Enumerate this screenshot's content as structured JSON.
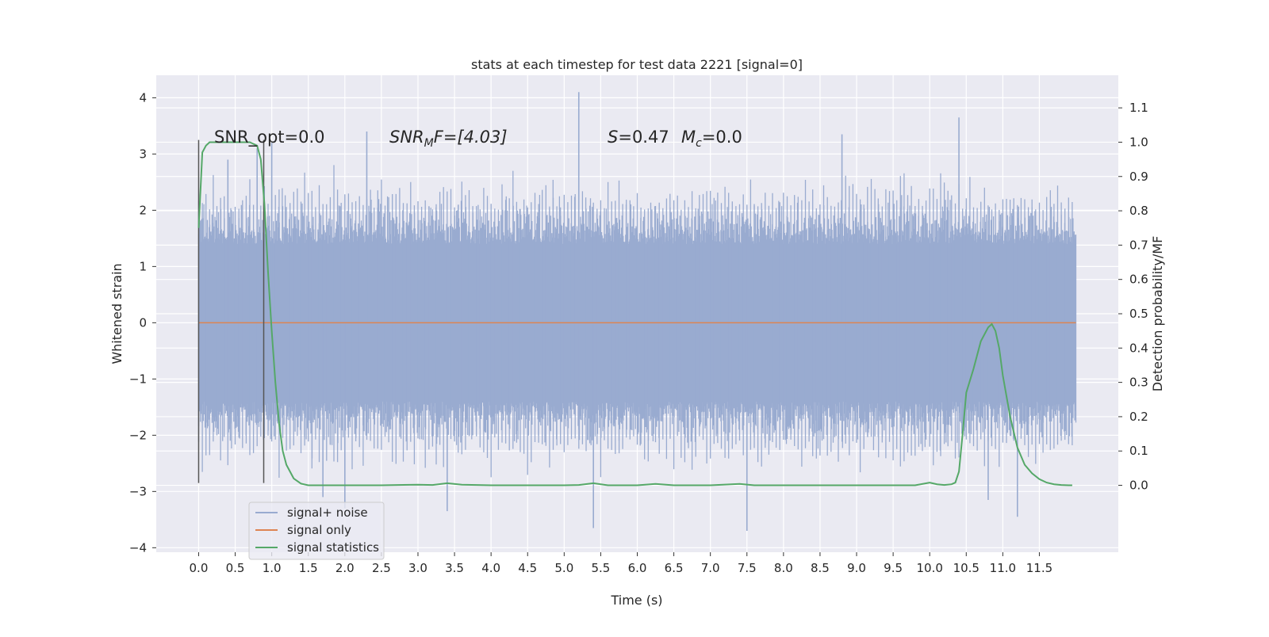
{
  "chart_data": {
    "type": "line",
    "title": "stats at each timestep for test data 2221 [signal=0]",
    "xlabel": "Time (s)",
    "ylabel": "Whitened strain",
    "ylabel_right": "Detection probability/MF",
    "xlim": [
      -0.58,
      12.58
    ],
    "ylim": [
      -4.08,
      4.4
    ],
    "ylim_right": [
      -0.195,
      1.195
    ],
    "x_ticks": [
      0.0,
      0.5,
      1.0,
      1.5,
      2.0,
      2.5,
      3.0,
      3.5,
      4.0,
      4.5,
      5.0,
      5.5,
      6.0,
      6.5,
      7.0,
      7.5,
      8.0,
      8.5,
      9.0,
      9.5,
      10.0,
      10.5,
      11.0,
      11.5
    ],
    "x_tick_labels": [
      "0.0",
      "0.5",
      "1.0",
      "1.5",
      "2.0",
      "2.5",
      "3.0",
      "3.5",
      "4.0",
      "4.5",
      "5.0",
      "5.5",
      "6.0",
      "6.5",
      "7.0",
      "7.5",
      "8.0",
      "8.5",
      "9.0",
      "9.5",
      "10.0",
      "10.5",
      "11.0",
      "11.5"
    ],
    "y_ticks": [
      -4,
      -3,
      -2,
      -1,
      0,
      1,
      2,
      3,
      4
    ],
    "y_tick_labels": [
      "−4",
      "−3",
      "−2",
      "−1",
      "0",
      "1",
      "2",
      "3",
      "4"
    ],
    "y_right_ticks": [
      0.0,
      0.1,
      0.2,
      0.3,
      0.4,
      0.5,
      0.6,
      0.7,
      0.8,
      0.9,
      1.0,
      1.1
    ],
    "y_right_tick_labels": [
      "0.0",
      "0.1",
      "0.2",
      "0.3",
      "0.4",
      "0.5",
      "0.6",
      "0.7",
      "0.8",
      "0.9",
      "1.0",
      "1.1"
    ],
    "grid": true,
    "legend_position": "lower-left",
    "annotations": {
      "snr_opt": "SNR_opt=0.0",
      "snr_mf_main": "SNR",
      "snr_mf_sub": "M",
      "snr_mf_rest": "F=[4.03]",
      "s_var": "S",
      "s_rest": "=0.47",
      "mc_var": "M",
      "mc_sub": "c",
      "mc_rest": "=0.0"
    },
    "series": [
      {
        "name": "signal+ noise",
        "color": "#99abd0",
        "kind": "noise",
        "x_range": [
          0.0,
          12.0
        ],
        "envelope_y": [
          -2.3,
          2.3
        ],
        "peak_values": [
          {
            "x": 0.4,
            "y": 2.9
          },
          {
            "x": 0.8,
            "y": 3.1
          },
          {
            "x": 1.0,
            "y": 3.2
          },
          {
            "x": 1.7,
            "y": -3.1
          },
          {
            "x": 2.0,
            "y": -3.3
          },
          {
            "x": 2.3,
            "y": 3.4
          },
          {
            "x": 3.4,
            "y": -3.35
          },
          {
            "x": 5.2,
            "y": 4.1
          },
          {
            "x": 5.4,
            "y": -3.65
          },
          {
            "x": 7.5,
            "y": -3.7
          },
          {
            "x": 8.8,
            "y": 3.35
          },
          {
            "x": 10.4,
            "y": 3.65
          },
          {
            "x": 10.8,
            "y": -3.15
          },
          {
            "x": 11.2,
            "y": -3.45
          }
        ]
      },
      {
        "name": "signal only",
        "color": "#dd8452",
        "kind": "flat",
        "x": [
          0.0,
          12.0
        ],
        "y": [
          0.0,
          0.0
        ]
      },
      {
        "name": "signal statistics",
        "color": "#55a868",
        "kind": "line",
        "axis": "right",
        "x": [
          0.0,
          0.05,
          0.1,
          0.15,
          0.2,
          0.3,
          0.4,
          0.5,
          0.6,
          0.7,
          0.8,
          0.85,
          0.9,
          0.95,
          1.0,
          1.05,
          1.1,
          1.15,
          1.2,
          1.3,
          1.4,
          1.5,
          1.6,
          1.8,
          2.0,
          2.5,
          3.0,
          3.2,
          3.4,
          3.6,
          4.0,
          4.5,
          5.0,
          5.2,
          5.4,
          5.6,
          6.0,
          6.25,
          6.5,
          7.0,
          7.4,
          7.6,
          8.0,
          8.5,
          9.0,
          9.5,
          9.8,
          10.0,
          10.1,
          10.2,
          10.3,
          10.35,
          10.4,
          10.45,
          10.5,
          10.6,
          10.7,
          10.8,
          10.85,
          10.9,
          10.95,
          11.0,
          11.1,
          11.2,
          11.3,
          11.4,
          11.5,
          11.6,
          11.7,
          11.8,
          11.9,
          11.95
        ],
        "y": [
          0.75,
          0.97,
          0.99,
          1.0,
          1.0,
          1.0,
          1.0,
          1.0,
          1.0,
          1.0,
          0.99,
          0.95,
          0.82,
          0.62,
          0.45,
          0.3,
          0.18,
          0.1,
          0.06,
          0.02,
          0.005,
          0.0,
          0.0,
          0.0,
          0.0,
          0.0,
          0.002,
          0.001,
          0.006,
          0.002,
          0.0,
          0.0,
          0.0,
          0.001,
          0.006,
          0.0,
          0.0,
          0.004,
          0.0,
          0.0,
          0.004,
          0.0,
          0.0,
          0.0,
          0.0,
          0.0,
          0.0,
          0.008,
          0.003,
          0.001,
          0.003,
          0.008,
          0.04,
          0.15,
          0.27,
          0.34,
          0.42,
          0.46,
          0.47,
          0.45,
          0.4,
          0.32,
          0.2,
          0.11,
          0.06,
          0.035,
          0.018,
          0.008,
          0.003,
          0.001,
          0.0,
          0.0
        ]
      }
    ],
    "vertical_markers": {
      "color": "#555555",
      "x": [
        0.0,
        0.89
      ],
      "y_range": [
        -2.85,
        3.25
      ]
    }
  }
}
